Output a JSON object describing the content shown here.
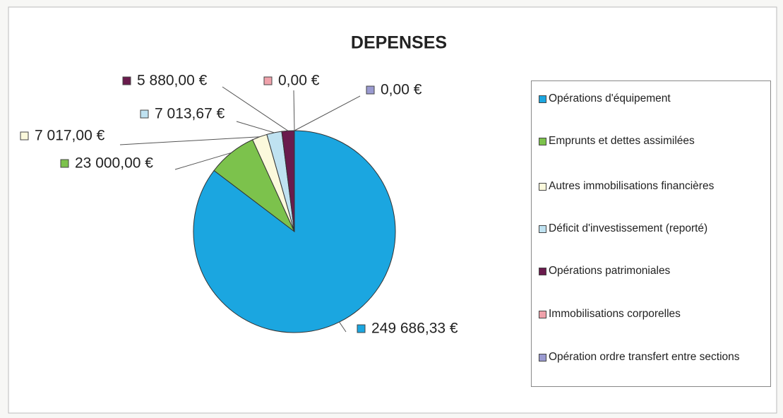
{
  "chart_data": {
    "type": "pie",
    "title": "DEPENSES",
    "categories": [
      "Opérations d'équipement",
      "Emprunts et dettes assimilées",
      "Autres immobilisations financières",
      "Déficit d'investissement (reporté)",
      "Opérations patrimoniales",
      "Immobilisations corporelles",
      "Opération ordre transfert entre sections"
    ],
    "values": [
      249686.33,
      23000,
      7017,
      7013.67,
      5880,
      0,
      0
    ],
    "value_labels": [
      "249 686,33 €",
      "23 000,00 €",
      "7 017,00 €",
      "7 013,67 €",
      "5 880,00 €",
      "0,00 €",
      "0,00 €"
    ],
    "colors": [
      "#1ba6e0",
      "#7cc24c",
      "#fbf9dc",
      "#bfe2f1",
      "#6a1b4d",
      "#f0a2ab",
      "#9a9ad0"
    ],
    "legend": "right"
  }
}
